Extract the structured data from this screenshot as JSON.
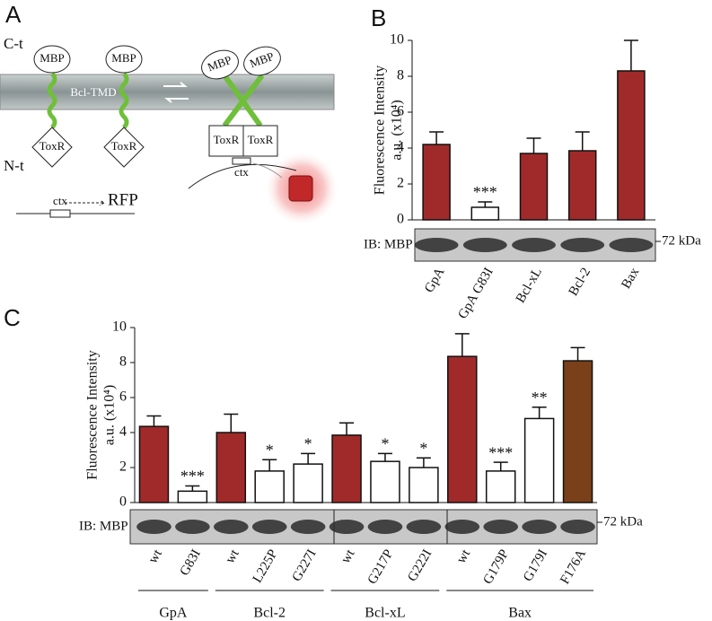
{
  "panel_labels": [
    "A",
    "B",
    "C"
  ],
  "diagram": {
    "c_terminus": "C-t",
    "n_terminus": "N-t",
    "mbp": [
      "MBP",
      "MBP",
      "MBP",
      "MBP"
    ],
    "tmd": "Bcl-TMD",
    "toxr": [
      "ToxR",
      "ToxR",
      "ToxR",
      "ToxR"
    ],
    "ctx": [
      "ctx",
      "ctx"
    ],
    "reporter": "RFP"
  },
  "chart_data": [
    {
      "type": "bar",
      "ylabel": [
        "Fluorescence Intensity",
        "a.u. (x10⁴)"
      ],
      "categories": [
        "GpA",
        "GpA G83I",
        "Bcl-xL",
        "Bcl-2",
        "Bax"
      ],
      "values": [
        4.2,
        0.7,
        3.7,
        3.85,
        8.3
      ],
      "errors": [
        0.7,
        0.3,
        0.85,
        1.05,
        1.7
      ],
      "colors": [
        "#a02a2a",
        "#ffffff",
        "#a02a2a",
        "#a02a2a",
        "#a02a2a"
      ],
      "annotations": [
        null,
        "***",
        null,
        null,
        null
      ],
      "ylim": [
        0,
        10
      ],
      "yticks": [
        0,
        2,
        4,
        6,
        8,
        10
      ],
      "blot_label": "IB: MBP",
      "marker_label": "72 kDa"
    },
    {
      "type": "bar",
      "ylabel": [
        "Fluorescence Intensity",
        "a.u. (x10⁴)"
      ],
      "categories": [
        "wt",
        "G83I",
        "wt",
        "L225P",
        "G227I",
        "wt",
        "G217P",
        "G222I",
        "wt",
        "G179P",
        "G179I",
        "F176A"
      ],
      "values": [
        4.35,
        0.65,
        4.0,
        1.8,
        2.2,
        3.85,
        2.35,
        2.0,
        8.35,
        1.8,
        4.8,
        8.1
      ],
      "errors": [
        0.6,
        0.3,
        1.05,
        0.65,
        0.6,
        0.7,
        0.45,
        0.55,
        1.3,
        0.5,
        0.65,
        0.75
      ],
      "colors": [
        "#a02a2a",
        "#ffffff",
        "#a02a2a",
        "#ffffff",
        "#ffffff",
        "#a02a2a",
        "#ffffff",
        "#ffffff",
        "#a02a2a",
        "#ffffff",
        "#ffffff",
        "#7a4019"
      ],
      "annotations": [
        null,
        "***",
        null,
        "*",
        "*",
        null,
        "*",
        "*",
        null,
        "***",
        "**",
        null
      ],
      "groups": [
        "GpA",
        "Bcl-2",
        "Bcl-xL",
        "Bax"
      ],
      "ylim": [
        0,
        10
      ],
      "yticks": [
        0,
        2,
        4,
        6,
        8,
        10
      ],
      "blot_label": "IB: MBP",
      "marker_label": "72 kDa"
    }
  ]
}
